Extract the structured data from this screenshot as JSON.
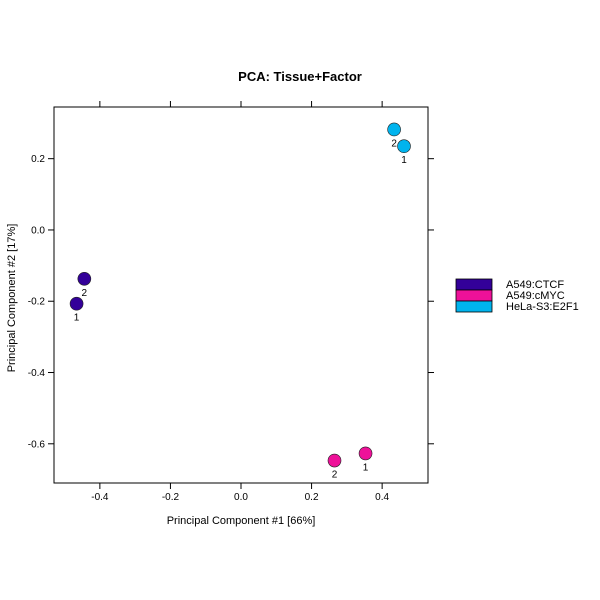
{
  "chart_data": {
    "type": "scatter",
    "title": "PCA: Tissue+Factor",
    "xlabel": "Principal Component #1 [66%]",
    "ylabel": "Principal Component #2 [17%]",
    "xlim": [
      -0.53,
      0.53
    ],
    "ylim": [
      -0.71,
      0.345
    ],
    "xticks": [
      -0.4,
      -0.2,
      0.0,
      0.2,
      0.4
    ],
    "xtick_labels": [
      "-0.4",
      "-0.2",
      "0.0",
      "0.2",
      "0.4"
    ],
    "yticks": [
      -0.6,
      -0.4,
      -0.2,
      0.0,
      0.2
    ],
    "ytick_labels": [
      "-0.6",
      "-0.4",
      "-0.2",
      "0.0",
      "0.2"
    ],
    "grid": false,
    "legend_position": "right",
    "series": [
      {
        "name": "A549:CTCF",
        "color": "#330099",
        "points": [
          {
            "x": -0.466,
            "y": -0.207,
            "label": "1"
          },
          {
            "x": -0.444,
            "y": -0.137,
            "label": "2"
          }
        ]
      },
      {
        "name": "A549:cMYC",
        "color": "#ee1199",
        "points": [
          {
            "x": 0.353,
            "y": -0.627,
            "label": "1"
          },
          {
            "x": 0.265,
            "y": -0.647,
            "label": "2"
          }
        ]
      },
      {
        "name": "HeLa-S3:E2F1",
        "color": "#00b4ee",
        "points": [
          {
            "x": 0.462,
            "y": 0.235,
            "label": "1"
          },
          {
            "x": 0.434,
            "y": 0.282,
            "label": "2"
          }
        ]
      }
    ]
  }
}
